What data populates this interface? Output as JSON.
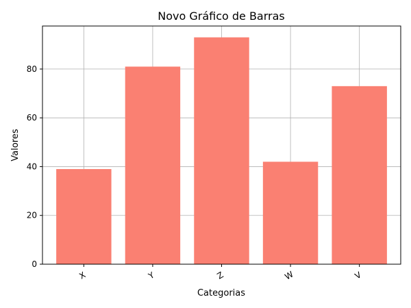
{
  "chart_data": {
    "type": "bar",
    "title": "Novo Gráfico de Barras",
    "xlabel": "Categorias",
    "ylabel": "Valores",
    "categories": [
      "X",
      "Y",
      "Z",
      "W",
      "V"
    ],
    "values": [
      39,
      81,
      93,
      42,
      73
    ],
    "ylim": [
      0,
      97.65
    ],
    "yticks": [
      "0",
      "20",
      "40",
      "60",
      "80"
    ],
    "grid": true,
    "bar_color": "#fa8072",
    "xtick_rotation": -30
  }
}
